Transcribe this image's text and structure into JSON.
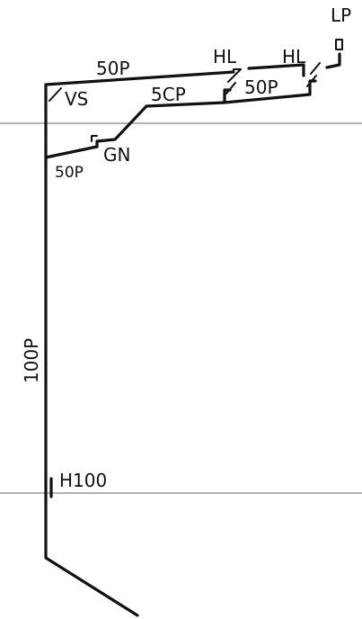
{
  "labels": {
    "lp": "LP",
    "hl_left": "HL",
    "hl_right": "HL",
    "cable_top": "50P",
    "cable_mid": "5CP",
    "cable_right": "50P",
    "vs": "VS",
    "gn": "GN",
    "cable_gn": "50P",
    "cable_main": "100P",
    "h100": "H100"
  },
  "colors": {
    "line": "#111111",
    "guide": "#666666",
    "background": "#ffffff"
  }
}
